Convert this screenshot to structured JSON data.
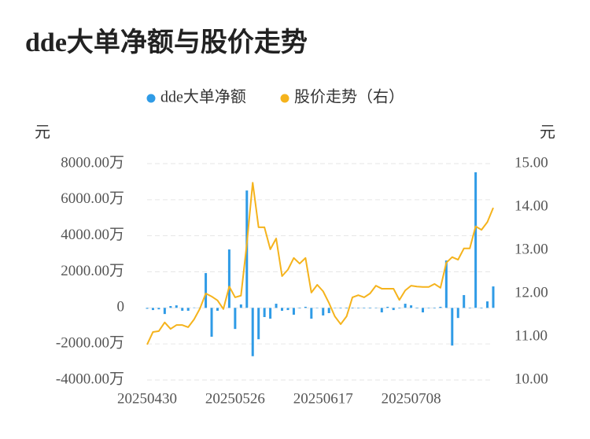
{
  "chart_data": {
    "type": "bar",
    "title": "dde大单净额与股价走势",
    "ylabel": "元",
    "y2label": "元",
    "grid": true,
    "categories": [
      "20250430",
      null,
      null,
      null,
      null,
      null,
      null,
      null,
      null,
      null,
      null,
      null,
      null,
      null,
      null,
      "20250526",
      null,
      null,
      null,
      null,
      null,
      null,
      null,
      null,
      null,
      null,
      null,
      null,
      null,
      null,
      "20250617",
      null,
      null,
      null,
      null,
      null,
      null,
      null,
      null,
      null,
      null,
      null,
      null,
      null,
      null,
      "20250708",
      null,
      null,
      null,
      null,
      null,
      null,
      null,
      null,
      null,
      null,
      null,
      null,
      null,
      null
    ],
    "series": [
      {
        "name": "dde大单净额",
        "type": "bar",
        "color": "#2f9be6",
        "values": [
          -50,
          -120,
          -80,
          -340,
          100,
          140,
          -160,
          -160,
          20,
          20,
          1930,
          -1600,
          -160,
          0,
          3240,
          -1170,
          190,
          6510,
          -2680,
          -1740,
          -510,
          -600,
          230,
          -160,
          -120,
          -380,
          -30,
          60,
          -600,
          0,
          -420,
          -290,
          0,
          -30,
          -30,
          -30,
          -30,
          -30,
          -30,
          0,
          -250,
          60,
          -120,
          -30,
          230,
          140,
          -30,
          -250,
          -30,
          -30,
          60,
          2630,
          -2090,
          -560,
          710,
          -30,
          7520,
          -30,
          360,
          1190
        ]
      },
      {
        "name": "股价走势（右）",
        "type": "line",
        "axis": "y2",
        "color": "#f5b31c",
        "values": [
          10.82,
          11.11,
          11.13,
          11.33,
          11.18,
          11.27,
          11.27,
          11.22,
          11.4,
          11.65,
          12.0,
          11.93,
          11.84,
          11.64,
          12.16,
          11.91,
          11.95,
          13.15,
          14.56,
          13.53,
          13.53,
          13.02,
          13.27,
          12.4,
          12.55,
          12.82,
          12.69,
          12.82,
          12.02,
          12.2,
          12.05,
          11.78,
          11.47,
          11.29,
          11.47,
          11.91,
          11.96,
          11.91,
          12.0,
          12.18,
          12.11,
          12.11,
          12.11,
          11.85,
          12.07,
          12.18,
          12.16,
          12.15,
          12.15,
          12.22,
          12.13,
          12.71,
          12.84,
          12.78,
          13.04,
          13.04,
          13.55,
          13.47,
          13.65,
          13.98
        ]
      }
    ],
    "ylim": [
      -4000,
      8000
    ],
    "yticks": [
      {
        "value": -4000,
        "label": "-4000.00万"
      },
      {
        "value": -2000,
        "label": "-2000.00万"
      },
      0,
      {
        "value": 2000,
        "label": "2000.00万"
      },
      {
        "value": 4000,
        "label": "4000.00万"
      },
      {
        "value": 6000,
        "label": "6000.00万"
      },
      {
        "value": 8000,
        "label": "8000.00万"
      }
    ],
    "y2lim": [
      10,
      15
    ],
    "y2ticks": [
      {
        "value": 10,
        "label": "10.00"
      },
      {
        "value": 11,
        "label": "11.00"
      },
      {
        "value": 12,
        "label": "12.00"
      },
      {
        "value": 13,
        "label": "13.00"
      },
      {
        "value": 14,
        "label": "14.00"
      },
      {
        "value": 15,
        "label": "15.00"
      }
    ]
  }
}
